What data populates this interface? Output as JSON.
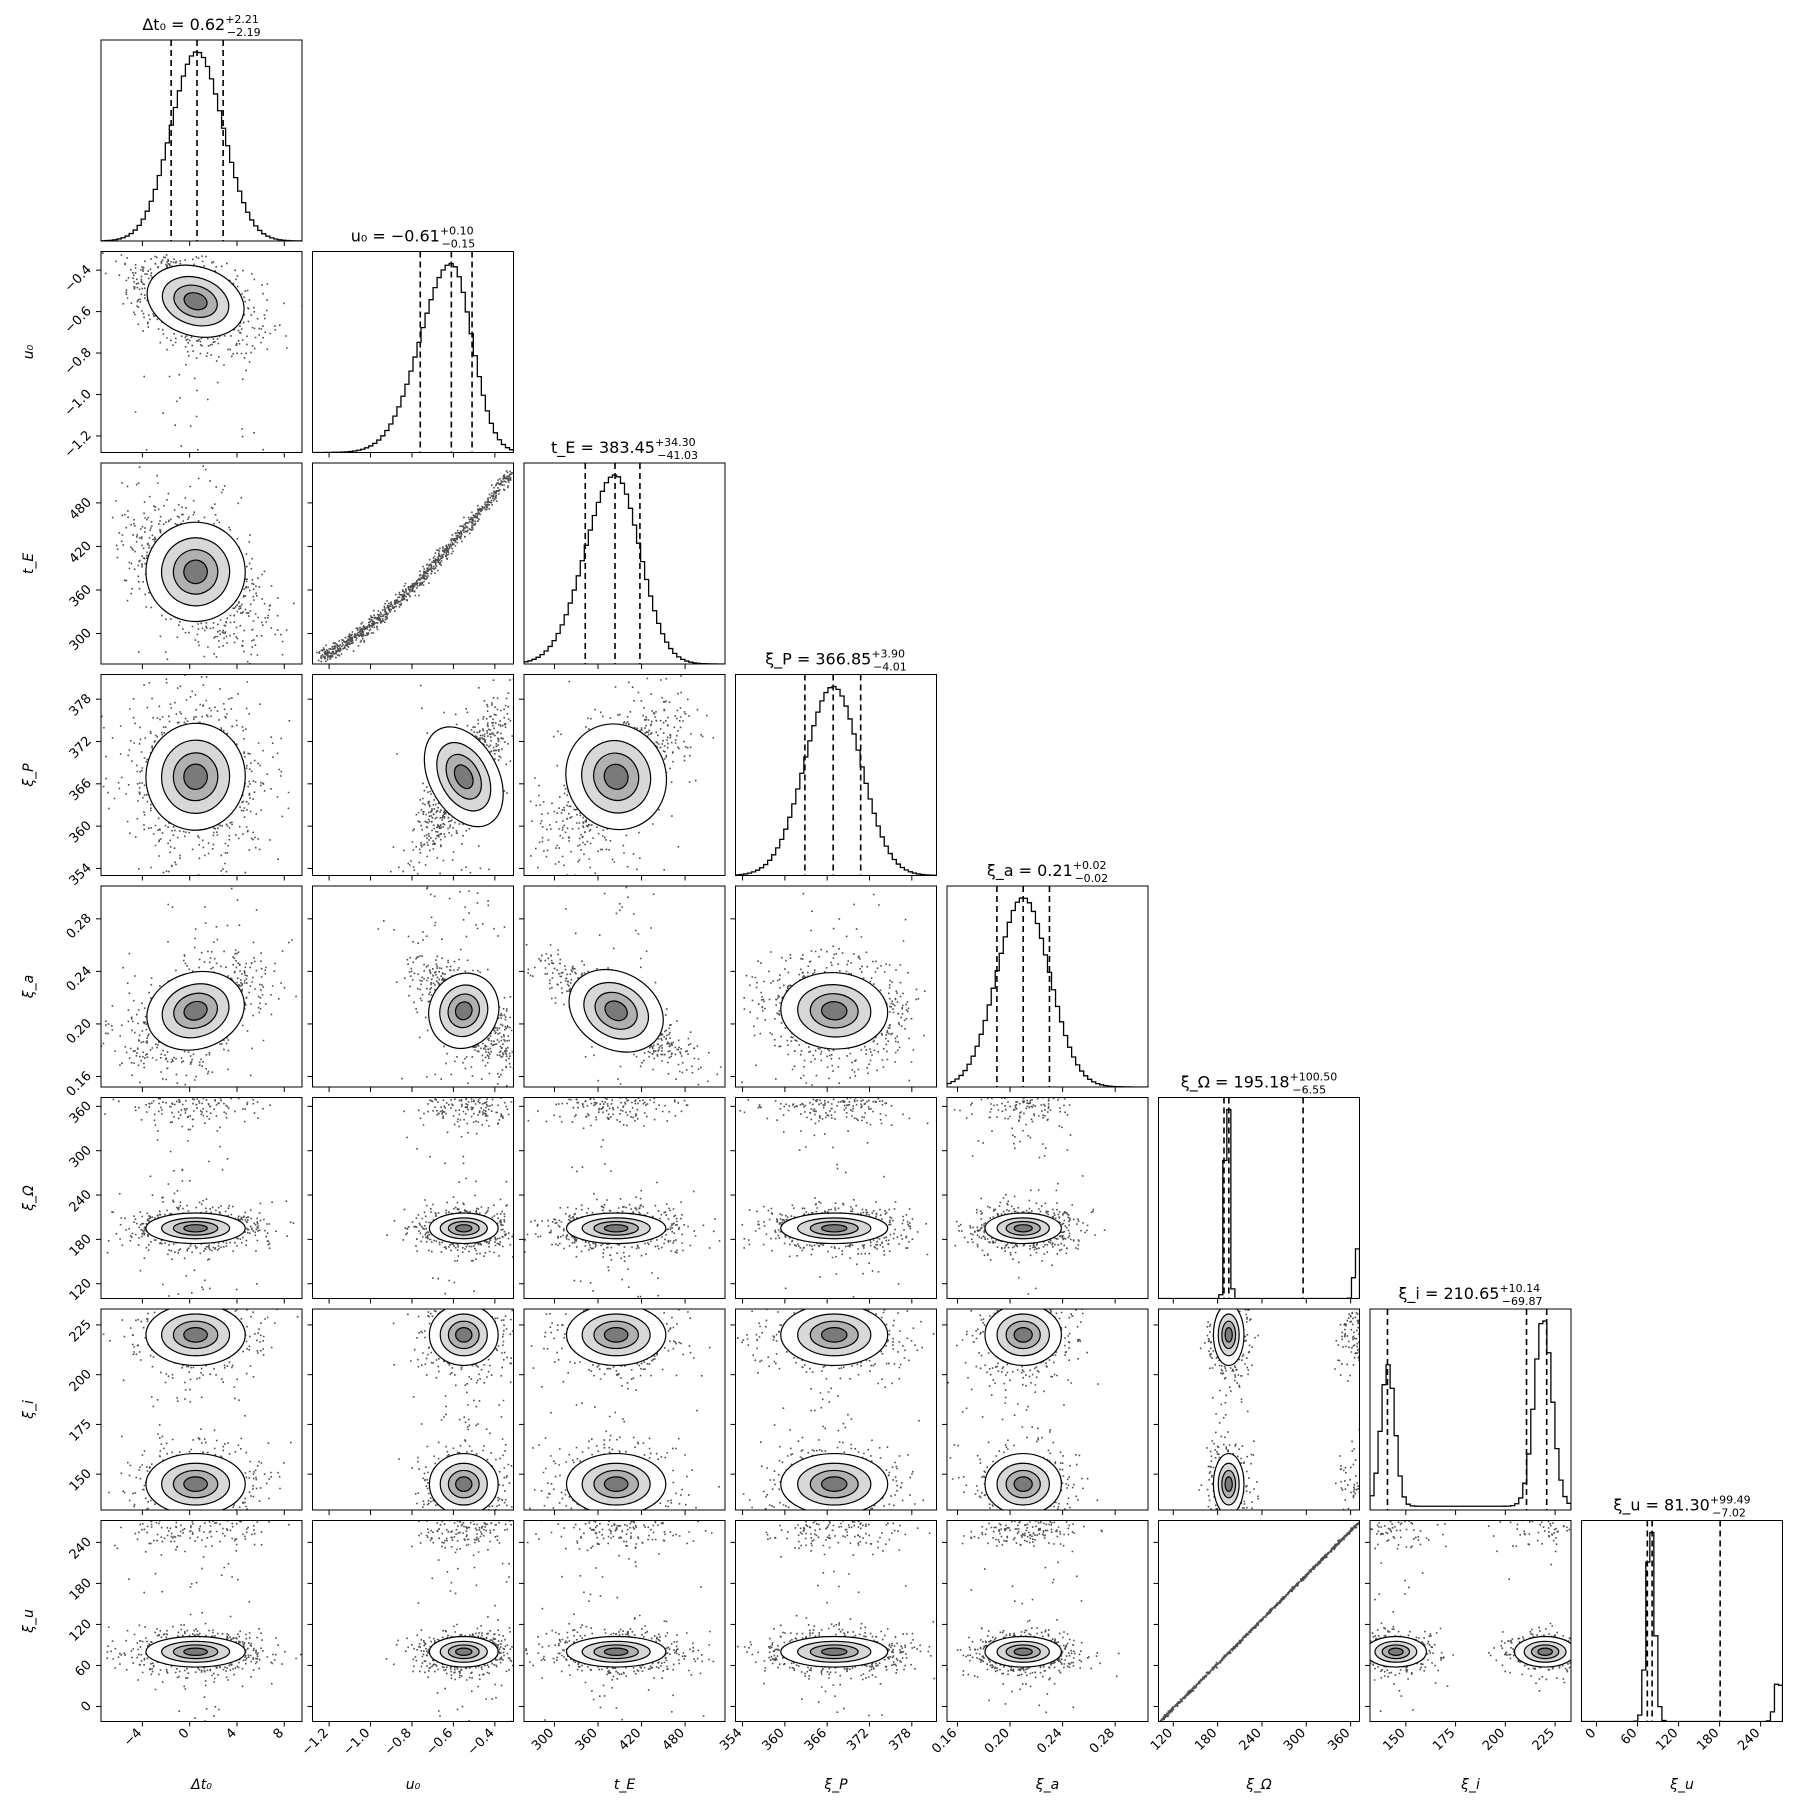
{
  "chart_data": {
    "type": "corner",
    "params": [
      {
        "key": "dt0",
        "label": "Δt₀",
        "lim": [
          -7.5,
          9.5
        ],
        "ticks": [
          -4,
          0,
          4,
          8
        ],
        "tick_labels": [
          "−4",
          "0",
          "4",
          "8"
        ],
        "q": [
          -1.57,
          0.62,
          2.83
        ],
        "title_main": "Δt₀ = 0.62",
        "title_up": "+2.21",
        "title_dn": "−2.19"
      },
      {
        "key": "u0",
        "label": "u₀",
        "lim": [
          -1.28,
          -0.31
        ],
        "ticks": [
          -1.2,
          -1.0,
          -0.8,
          -0.6,
          -0.4
        ],
        "tick_labels": [
          "−1.2",
          "−1.0",
          "−0.8",
          "−0.6",
          "−0.4"
        ],
        "q": [
          -0.76,
          -0.61,
          -0.51
        ],
        "title_main": "u₀ = −0.61",
        "title_up": "+0.10",
        "title_dn": "−0.15"
      },
      {
        "key": "tE",
        "label": "t_E",
        "lim": [
          258,
          535
        ],
        "ticks": [
          300,
          360,
          420,
          480
        ],
        "tick_labels": [
          "300",
          "360",
          "420",
          "480"
        ],
        "q": [
          342.42,
          383.45,
          417.75
        ],
        "title_main": "t_E = 383.45",
        "title_up": "+34.30",
        "title_dn": "−41.03"
      },
      {
        "key": "xiP",
        "label": "ξ_P",
        "lim": [
          353,
          381.5
        ],
        "ticks": [
          354,
          360,
          366,
          372,
          378
        ],
        "tick_labels": [
          "354",
          "360",
          "366",
          "372",
          "378"
        ],
        "q": [
          362.84,
          366.85,
          370.75
        ],
        "title_main": "ξ_P = 366.85",
        "title_up": "+3.90",
        "title_dn": "−4.01"
      },
      {
        "key": "xia",
        "label": "ξ_a",
        "lim": [
          0.152,
          0.305
        ],
        "ticks": [
          0.16,
          0.2,
          0.24,
          0.28
        ],
        "tick_labels": [
          "0.16",
          "0.20",
          "0.24",
          "0.28"
        ],
        "q": [
          0.19,
          0.21,
          0.23
        ],
        "title_main": "ξ_a = 0.21",
        "title_up": "+0.02",
        "title_dn": "−0.02"
      },
      {
        "key": "xiO",
        "label": "ξ_Ω",
        "lim": [
          100,
          372
        ],
        "ticks": [
          120,
          180,
          240,
          300,
          360
        ],
        "tick_labels": [
          "120",
          "180",
          "240",
          "300",
          "360"
        ],
        "q": [
          188.63,
          195.18,
          295.68
        ],
        "title_main": "ξ_Ω = 195.18",
        "title_up": "+100.50",
        "title_dn": "−6.55"
      },
      {
        "key": "xii",
        "label": "ξ_i",
        "lim": [
          132,
          233
        ],
        "ticks": [
          150,
          175,
          200,
          225
        ],
        "tick_labels": [
          "150",
          "175",
          "200",
          "225"
        ],
        "q": [
          140.78,
          210.65,
          220.79
        ],
        "title_main": "ξ_i = 210.65",
        "title_up": "+10.14",
        "title_dn": "−69.87"
      },
      {
        "key": "xiu",
        "label": "ξ_u",
        "lim": [
          -22,
          272
        ],
        "ticks": [
          0,
          60,
          120,
          180,
          240
        ],
        "tick_labels": [
          "0",
          "60",
          "120",
          "180",
          "240"
        ],
        "q": [
          74.28,
          81.3,
          180.79
        ],
        "title_main": "ξ_u = 81.30",
        "title_up": "+99.49",
        "title_dn": "−7.02"
      }
    ],
    "grid": false
  }
}
